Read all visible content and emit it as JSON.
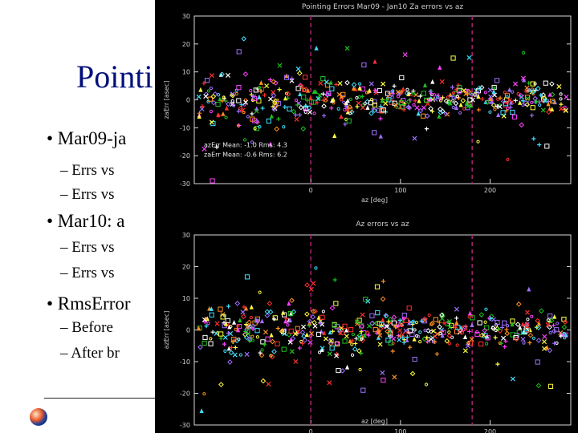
{
  "slide": {
    "title": "Pointi",
    "bullets": [
      {
        "level": 1,
        "text": "• Mar09-ja"
      },
      {
        "level": 2,
        "text": "– Errs vs"
      },
      {
        "level": 2,
        "text": "– Errs vs"
      },
      {
        "level": 1,
        "text": "• Mar10: a"
      },
      {
        "level": 2,
        "text": "– Errs vs"
      },
      {
        "level": 2,
        "text": "– Errs vs"
      },
      {
        "level": 1,
        "text": "• RmsError"
      },
      {
        "level": 2,
        "text": "– Before"
      },
      {
        "level": 2,
        "text": "– After br"
      }
    ],
    "colors": {
      "title": "#00107a",
      "text": "#000000",
      "background": "#ffffff"
    }
  },
  "chart_data": [
    {
      "type": "scatter",
      "title": "Pointing Errors Mar09 - Jan10 Za errors vs az",
      "xlabel": "az [deg]",
      "ylabel": "zaErr [asec]",
      "xlim": [
        -130,
        290
      ],
      "ylim": [
        -30,
        30
      ],
      "yticks": [
        -30,
        -20,
        -10,
        0,
        10,
        20,
        30
      ],
      "xticks": [
        0,
        100,
        200
      ],
      "vlines": [
        0,
        180
      ],
      "annotations": [
        "azErr Mean: -1.0 Rms: 4.3",
        "zaErr Mean: -0.6 Rms: 6.2"
      ],
      "marker_colors": [
        "#a070ff",
        "#ff40ff",
        "#40e0ff",
        "#20c020",
        "#ffff40",
        "#ff3030",
        "#ffffff",
        "#ff9020"
      ]
    },
    {
      "type": "scatter",
      "title": "Az errors vs az",
      "xlabel": "az [deg]",
      "ylabel": "azErr [asec]",
      "xlim": [
        -130,
        290
      ],
      "ylim": [
        -30,
        30
      ],
      "yticks": [
        -30,
        -20,
        -10,
        0,
        10,
        20,
        30
      ],
      "xticks": [
        0,
        100,
        200
      ],
      "vlines": [
        0,
        180
      ],
      "annotations": [],
      "marker_colors": [
        "#a070ff",
        "#ff40ff",
        "#40e0ff",
        "#20c020",
        "#ffff40",
        "#ff3030",
        "#ffffff",
        "#ff9020"
      ]
    }
  ]
}
